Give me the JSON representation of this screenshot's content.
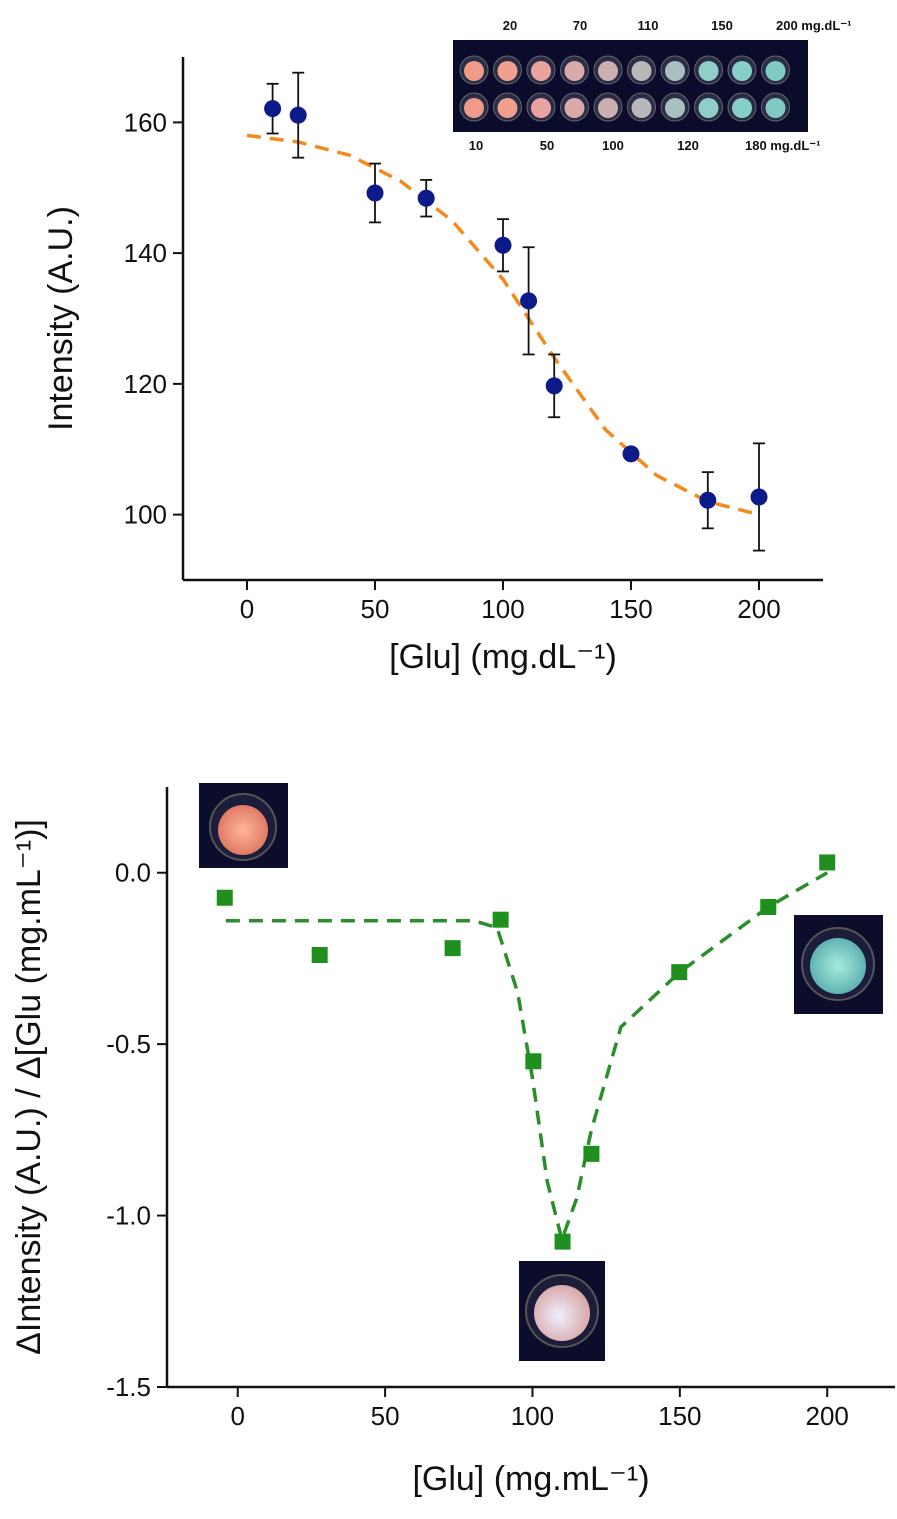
{
  "chart_data": [
    {
      "type": "scatter",
      "x_label": "[Glu] (mg.dL⁻¹)",
      "y_label": "Intensity (A.U.)",
      "xlim": [
        -25,
        225
      ],
      "ylim": [
        90,
        170
      ],
      "xticks": [
        0,
        50,
        100,
        150,
        200
      ],
      "yticks": [
        100,
        120,
        140,
        160
      ],
      "marker": "circle",
      "points": {
        "color": "#0c1a8a",
        "x": [
          10,
          20,
          50,
          70,
          100,
          110,
          120,
          150,
          180,
          200
        ],
        "values": [
          162.1,
          161.1,
          149.2,
          148.4,
          141.2,
          132.7,
          119.7,
          109.3,
          102.2,
          102.7
        ],
        "errors": [
          3.8,
          6.5,
          4.5,
          2.8,
          4,
          8.2,
          4.8,
          0.5,
          4.3,
          8.2
        ]
      },
      "fit": {
        "color": "#f28a1e",
        "x": [
          0,
          20,
          40,
          60,
          80,
          100,
          120,
          140,
          160,
          180,
          200
        ],
        "values": [
          158,
          157,
          155,
          151,
          145,
          136,
          124,
          113,
          106,
          102,
          100
        ]
      },
      "inset_labels": {
        "top": [
          "20",
          "70",
          "110",
          "150",
          "200 mg.dL⁻¹"
        ],
        "bottom": [
          "10",
          "50",
          "100",
          "120",
          "180 mg.dL⁻¹"
        ]
      }
    },
    {
      "type": "scatter",
      "x_label": "[Glu] (mg.mL⁻¹)",
      "y_label": "ΔIntensity (A.U.) / Δ[Glu (mg.mL⁻¹)]",
      "xlim": [
        -24,
        223
      ],
      "ylim": [
        -1.5,
        0.25
      ],
      "xticks": [
        0,
        50,
        100,
        150,
        200
      ],
      "yticks": [
        -1.5,
        {
          "value": -1,
          "label": "-1.0"
        },
        -0.5,
        {
          "value": 0,
          "label": "0.0"
        }
      ],
      "marker": "square",
      "points": {
        "color": "#1f8f1f",
        "x": [
          -4.4,
          27.8,
          72.9,
          89.2,
          100.3,
          110.2,
          120,
          149.8,
          180,
          200
        ],
        "values": [
          -0.073,
          -0.24,
          -0.22,
          -0.137,
          -0.55,
          -1.076,
          -0.82,
          -0.29,
          -0.1,
          0.03
        ]
      },
      "fit": {
        "color": "#2a8f2a",
        "x": [
          -4,
          0,
          40,
          80,
          88,
          95,
          100,
          105,
          110,
          115,
          120,
          130,
          150,
          180,
          200
        ],
        "values": [
          -0.14,
          -0.14,
          -0.14,
          -0.14,
          -0.16,
          -0.35,
          -0.6,
          -0.9,
          -1.07,
          -0.95,
          -0.75,
          -0.45,
          -0.29,
          -0.1,
          0
        ]
      }
    }
  ]
}
